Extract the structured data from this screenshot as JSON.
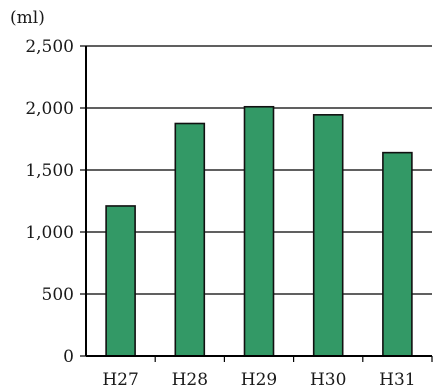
{
  "chart_data": {
    "type": "bar",
    "unit_label": "(ml)",
    "categories": [
      "H27",
      "H28",
      "H29",
      "H30",
      "H31"
    ],
    "values": [
      1210,
      1875,
      2010,
      1945,
      1640
    ],
    "ylim": [
      0,
      2500
    ],
    "yticks": [
      0,
      500,
      1000,
      1500,
      2000,
      2500
    ],
    "ytick_labels": [
      "0",
      "500",
      "1,000",
      "1,500",
      "2,000",
      "2,500"
    ],
    "grid": true,
    "legend": "none",
    "colors": {
      "bar_fill": "#339966",
      "bar_stroke": "#111111"
    }
  }
}
